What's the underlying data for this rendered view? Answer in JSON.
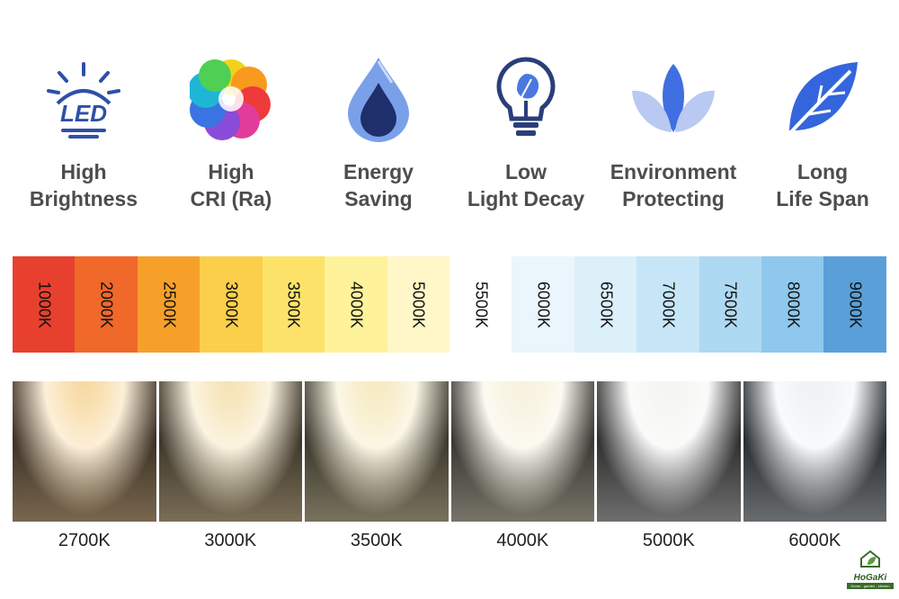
{
  "features": [
    {
      "icon": "led-bulb-icon",
      "line1": "High",
      "line2": "Brightness",
      "icon_text": "LED"
    },
    {
      "icon": "color-wheel-icon",
      "line1": "High",
      "line2": "CRI (Ra)"
    },
    {
      "icon": "flame-drop-icon",
      "line1": "Energy",
      "line2": "Saving"
    },
    {
      "icon": "leaf-bulb-icon",
      "line1": "Low",
      "line2": "Light Decay"
    },
    {
      "icon": "lotus-icon",
      "line1": "Environment",
      "line2": "Protecting"
    },
    {
      "icon": "leaf-icon",
      "line1": "Long",
      "line2": "Life Span"
    }
  ],
  "kelvin_scale": [
    {
      "label": "1000K",
      "color": "#e8402e"
    },
    {
      "label": "2000K",
      "color": "#f0682a"
    },
    {
      "label": "2500K",
      "color": "#f6a02a"
    },
    {
      "label": "3000K",
      "color": "#fbcf4a"
    },
    {
      "label": "3500K",
      "color": "#fde26a"
    },
    {
      "label": "4000K",
      "color": "#fef29a"
    },
    {
      "label": "5000K",
      "color": "#fff7c8"
    },
    {
      "label": "5500K",
      "color": "#ffffff"
    },
    {
      "label": "6000K",
      "color": "#eaf6fc"
    },
    {
      "label": "6500K",
      "color": "#dcf0fa"
    },
    {
      "label": "7000K",
      "color": "#c6e6f7"
    },
    {
      "label": "7500K",
      "color": "#aed9f2"
    },
    {
      "label": "8000K",
      "color": "#8ec8ec"
    },
    {
      "label": "9000K",
      "color": "#5a9fd8"
    }
  ],
  "light_samples": [
    {
      "label": "2700K",
      "glow": "#f7d9a0",
      "base": "#3a2f25"
    },
    {
      "label": "3000K",
      "glow": "#f6e3b4",
      "base": "#3b3428"
    },
    {
      "label": "3500K",
      "glow": "#f6eac0",
      "base": "#3a362b"
    },
    {
      "label": "4000K",
      "glow": "#f7f1dc",
      "base": "#37352f"
    },
    {
      "label": "5000K",
      "glow": "#f4f4f2",
      "base": "#2c2c2c"
    },
    {
      "label": "6000K",
      "glow": "#eef2f5",
      "base": "#262a2d"
    }
  ],
  "brand": {
    "name": "HoGaKi",
    "tagline": "Home - garden - kitchen"
  },
  "colors": {
    "icon_blue": "#2f5fd8",
    "label_gray": "#4d4d4d"
  }
}
